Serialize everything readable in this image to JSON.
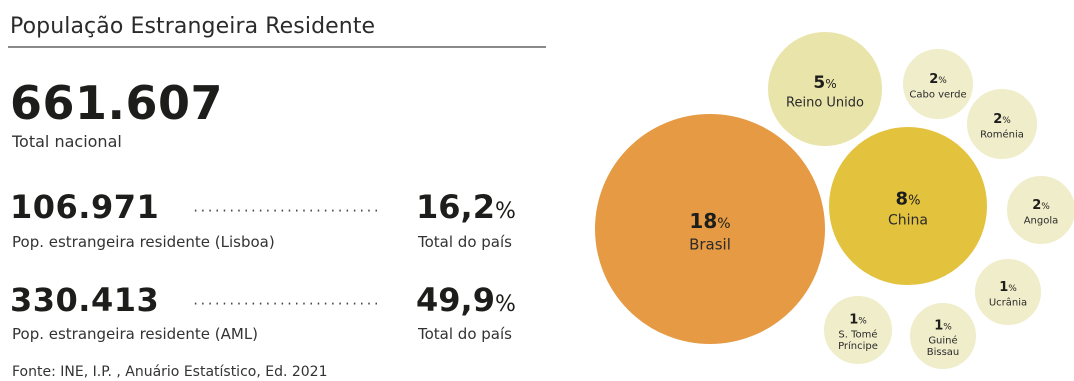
{
  "header": {
    "title": "População Estrangeira Residente"
  },
  "total": {
    "value": "661.607",
    "label": "Total nacional"
  },
  "stats": [
    {
      "value": "106.971",
      "label": "Pop. estrangeira residente (Lisboa)",
      "pct_number": "16,2",
      "pct_symbol": "%",
      "pct_label": "Total do país"
    },
    {
      "value": "330.413",
      "label": "Pop. estrangeira residente (AML)",
      "pct_number": "49,9",
      "pct_symbol": "%",
      "pct_label": "Total do país"
    }
  ],
  "source": "Fonte: INE, I.P. , Anuário Estatístico, Ed. 2021",
  "chart_data": {
    "type": "bubble",
    "unit": "%",
    "points": [
      {
        "label": "Brasil",
        "value": 18,
        "color": "#e59a43"
      },
      {
        "label": "China",
        "value": 8,
        "color": "#e3c23e"
      },
      {
        "label": "Reino Unido",
        "value": 5,
        "color": "#e9e4aa"
      },
      {
        "label": "Cabo verde",
        "value": 2,
        "color": "#f0edca"
      },
      {
        "label": "Roménia",
        "value": 2,
        "color": "#f0edca"
      },
      {
        "label": "Angola",
        "value": 2,
        "color": "#f0edca"
      },
      {
        "label": "Ucrânia",
        "value": 1,
        "color": "#f0edca"
      },
      {
        "label": "Guiné Bissau",
        "value": 1,
        "color": "#f0edca"
      },
      {
        "label": "S. Tomé Príncipe",
        "value": 1,
        "color": "#f0edca"
      }
    ]
  }
}
